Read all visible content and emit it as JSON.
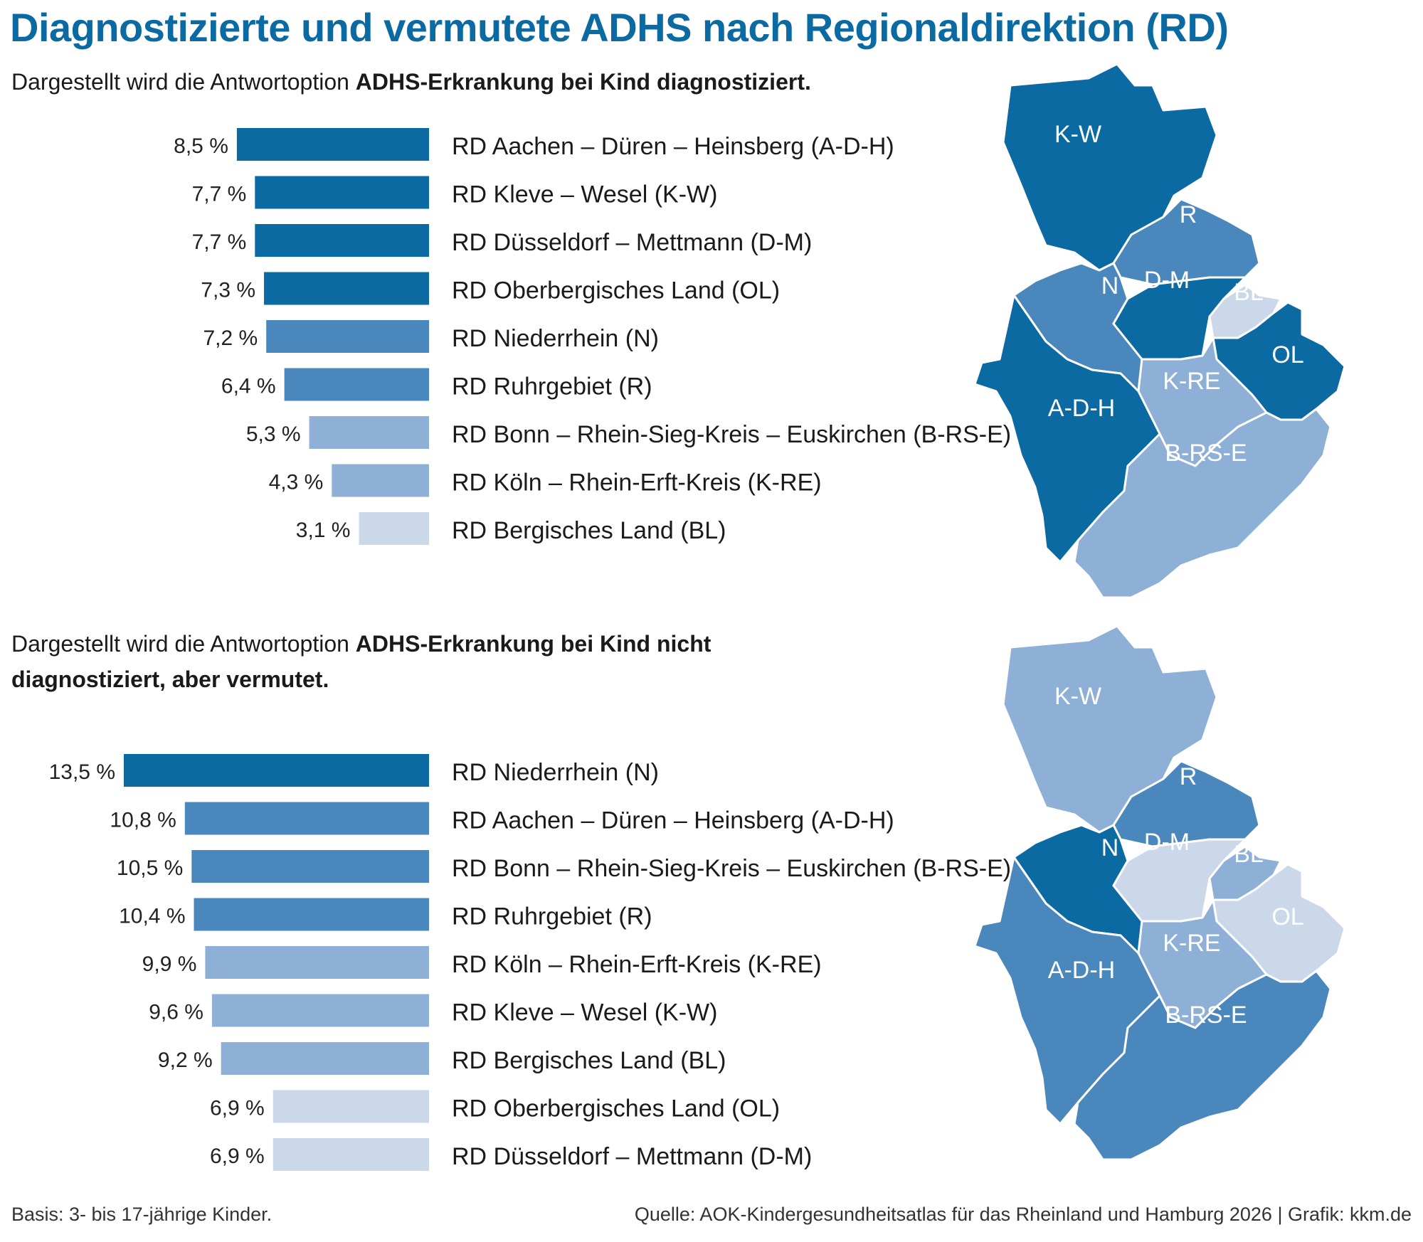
{
  "title": "Diagnostizierte und vermutete ADHS nach Regionaldirektion (RD)",
  "panels": [
    {
      "intro": "Dargestellt wird die Antwortoption ",
      "option": "ADHS-Erkrankung bei Kind diagnostiziert."
    },
    {
      "intro": "Dargestellt wird die Antwortoption ",
      "option": "ADHS-Erkrankung bei Kind nicht diagnostiziert, aber vermutet."
    }
  ],
  "chart_data": [
    {
      "type": "bar",
      "orientation": "horizontal",
      "categories": [
        "RD Aachen – Düren – Heinsberg (A-D-H)",
        "RD Kleve – Wesel (K-W)",
        "RD Düsseldorf – Mettmann (D-M)",
        "RD Oberbergisches Land (OL)",
        "RD Niederrhein (N)",
        "RD Ruhrgebiet (R)",
        "RD Bonn – Rhein-Sieg-Kreis – Euskirchen (B-RS-E)",
        "RD Köln – Rhein-Erft-Kreis (K-RE)",
        "RD Bergisches Land (BL)"
      ],
      "values": [
        8.5,
        7.7,
        7.7,
        7.3,
        7.2,
        6.4,
        5.3,
        4.3,
        3.1
      ],
      "value_labels": [
        "8,5 %",
        "7,7 %",
        "7,7 %",
        "7,3 %",
        "7,2 %",
        "6,4 %",
        "5,3 %",
        "4,3 %",
        "3,1 %"
      ],
      "shades": [
        1,
        1,
        1,
        1,
        2,
        2,
        3,
        3,
        4
      ],
      "xlim": [
        0,
        13.5
      ]
    },
    {
      "type": "bar",
      "orientation": "horizontal",
      "categories": [
        "RD Niederrhein (N)",
        "RD Aachen – Düren – Heinsberg (A-D-H)",
        "RD Bonn – Rhein-Sieg-Kreis – Euskirchen (B-RS-E)",
        "RD Ruhrgebiet (R)",
        "RD Köln – Rhein-Erft-Kreis (K-RE)",
        "RD Kleve – Wesel (K-W)",
        "RD Bergisches Land (BL)",
        "RD Oberbergisches Land (OL)",
        "RD Düsseldorf – Mettmann (D-M)"
      ],
      "values": [
        13.5,
        10.8,
        10.5,
        10.4,
        9.9,
        9.6,
        9.2,
        6.9,
        6.9
      ],
      "value_labels": [
        "13,5 %",
        "10,8 %",
        "10,5 %",
        "10,4 %",
        "9,9 %",
        "9,6 %",
        "9,2 %",
        "6,9 %",
        "6,9 %"
      ],
      "shades": [
        1,
        2,
        2,
        2,
        3,
        3,
        3,
        4,
        4
      ],
      "xlim": [
        0,
        13.5
      ]
    }
  ],
  "maps": [
    {
      "regions": [
        {
          "code": "K-W",
          "label": "K-W",
          "shade": 1
        },
        {
          "code": "R",
          "label": "R",
          "shade": 2
        },
        {
          "code": "N",
          "label": "N",
          "shade": 2
        },
        {
          "code": "D-M",
          "label": "D-M",
          "shade": 1
        },
        {
          "code": "BL",
          "label": "BL",
          "shade": 4
        },
        {
          "code": "OL",
          "label": "OL",
          "shade": 1
        },
        {
          "code": "K-RE",
          "label": "K-RE",
          "shade": 3
        },
        {
          "code": "A-D-H",
          "label": "A-D-H",
          "shade": 1
        },
        {
          "code": "B-RS-E",
          "label": "B-RS-E",
          "shade": 3
        }
      ]
    },
    {
      "regions": [
        {
          "code": "K-W",
          "label": "K-W",
          "shade": 3
        },
        {
          "code": "R",
          "label": "R",
          "shade": 2
        },
        {
          "code": "N",
          "label": "N",
          "shade": 1
        },
        {
          "code": "D-M",
          "label": "D-M",
          "shade": 4
        },
        {
          "code": "BL",
          "label": "BL",
          "shade": 3
        },
        {
          "code": "OL",
          "label": "OL",
          "shade": 4
        },
        {
          "code": "K-RE",
          "label": "K-RE",
          "shade": 3
        },
        {
          "code": "A-D-H",
          "label": "A-D-H",
          "shade": 2
        },
        {
          "code": "B-RS-E",
          "label": "B-RS-E",
          "shade": 2
        }
      ]
    }
  ],
  "palette": {
    "1": "#0b6aa2",
    "2": "#4a87bd",
    "3": "#8eb0d6",
    "4": "#cbd8ea",
    "border": "#ffffff"
  },
  "footer": {
    "left": "Basis: 3- bis 17-jährige Kinder.",
    "right": "Quelle: AOK-Kindergesundheitsatlas für das Rheinland und Hamburg 2026 | Grafik: kkm.de"
  }
}
